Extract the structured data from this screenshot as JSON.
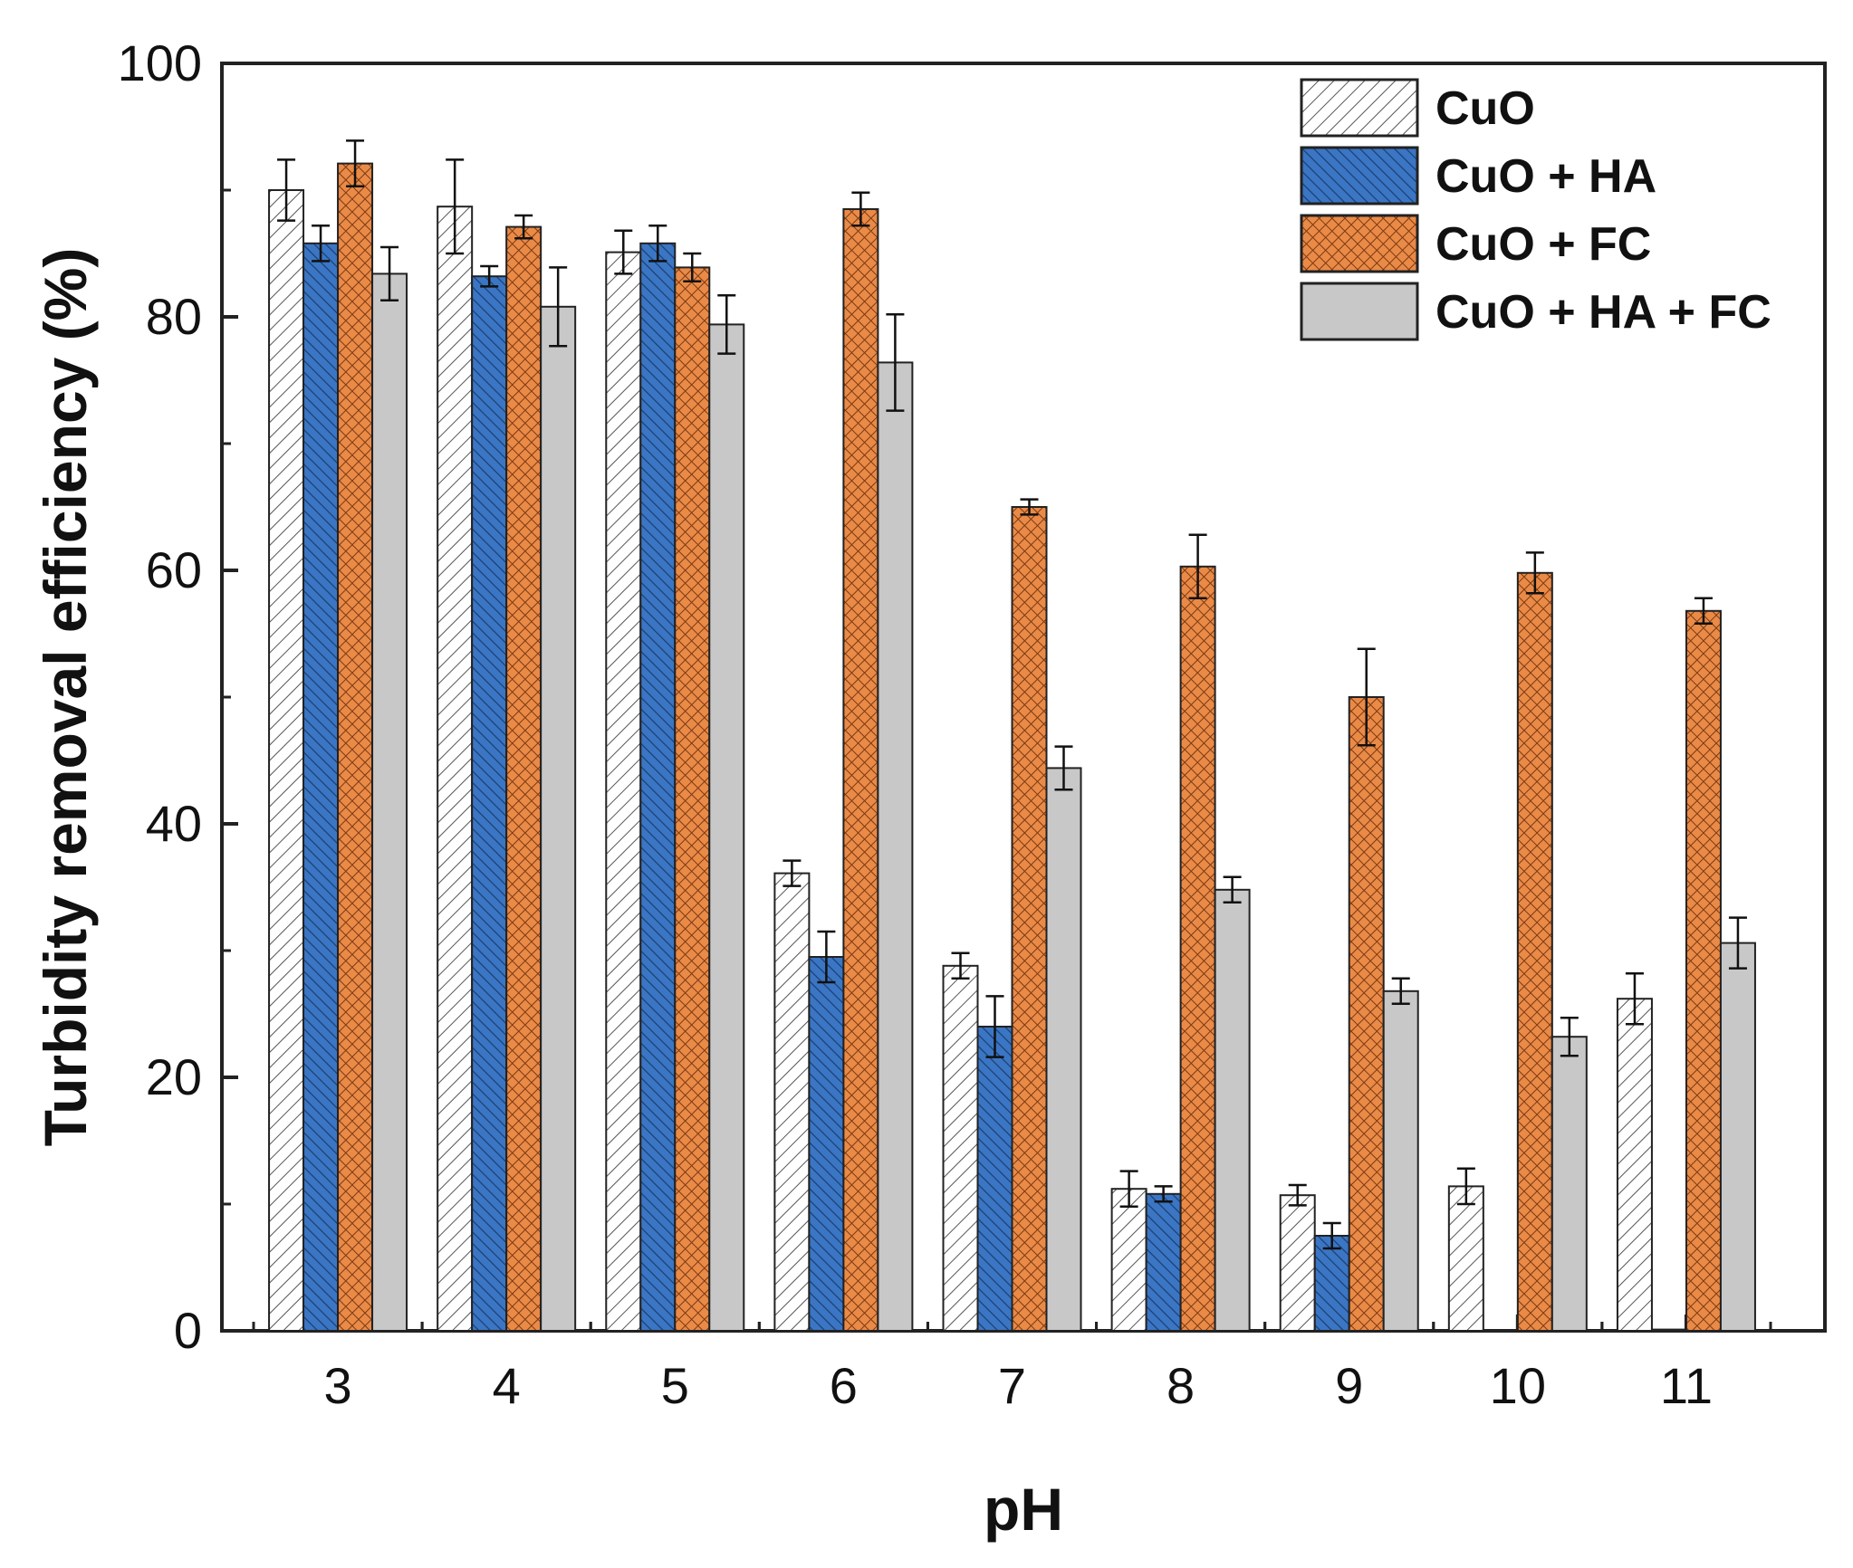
{
  "chart_data": {
    "type": "bar",
    "title": "",
    "xlabel": "pH",
    "ylabel": "Turbidity removal efficiency (%)",
    "ylim": [
      0,
      100
    ],
    "yticks": [
      "0",
      "20",
      "40",
      "60",
      "80",
      "100"
    ],
    "categories": [
      "3",
      "4",
      "5",
      "6",
      "7",
      "8",
      "9",
      "10",
      "11"
    ],
    "grid": false,
    "legend_position": "top-right",
    "series": [
      {
        "name": "CuO",
        "color": "#ffffff",
        "pattern": "sparse-diagonal-hatch",
        "values": [
          90.0,
          88.7,
          85.1,
          36.1,
          28.8,
          11.2,
          10.7,
          11.4,
          26.2
        ],
        "errors": [
          2.4,
          3.7,
          1.7,
          1.0,
          1.0,
          1.4,
          0.8,
          1.4,
          2.0
        ]
      },
      {
        "name": "CuO + HA",
        "color": "#3b76c4",
        "pattern": "dense-diagonal-hatch",
        "values": [
          85.8,
          83.2,
          85.8,
          29.5,
          24.0,
          10.8,
          7.5,
          0,
          0.1
        ],
        "errors": [
          1.4,
          0.8,
          1.4,
          2.0,
          2.4,
          0.6,
          1.0,
          0,
          0
        ]
      },
      {
        "name": "CuO + FC",
        "color": "#ea8a47",
        "pattern": "crosshatch",
        "values": [
          92.1,
          87.1,
          83.9,
          88.5,
          65.0,
          60.3,
          50.0,
          59.8,
          56.8
        ],
        "errors": [
          1.8,
          0.9,
          1.1,
          1.3,
          0.6,
          2.5,
          3.8,
          1.6,
          1.0
        ]
      },
      {
        "name": "CuO + HA + FC",
        "color": "#c8c8c8",
        "pattern": "solid",
        "values": [
          83.4,
          80.8,
          79.4,
          76.4,
          44.4,
          34.8,
          26.8,
          23.2,
          30.6
        ],
        "errors": [
          2.1,
          3.1,
          2.3,
          3.8,
          1.7,
          1.0,
          1.0,
          1.5,
          2.0
        ]
      }
    ]
  }
}
